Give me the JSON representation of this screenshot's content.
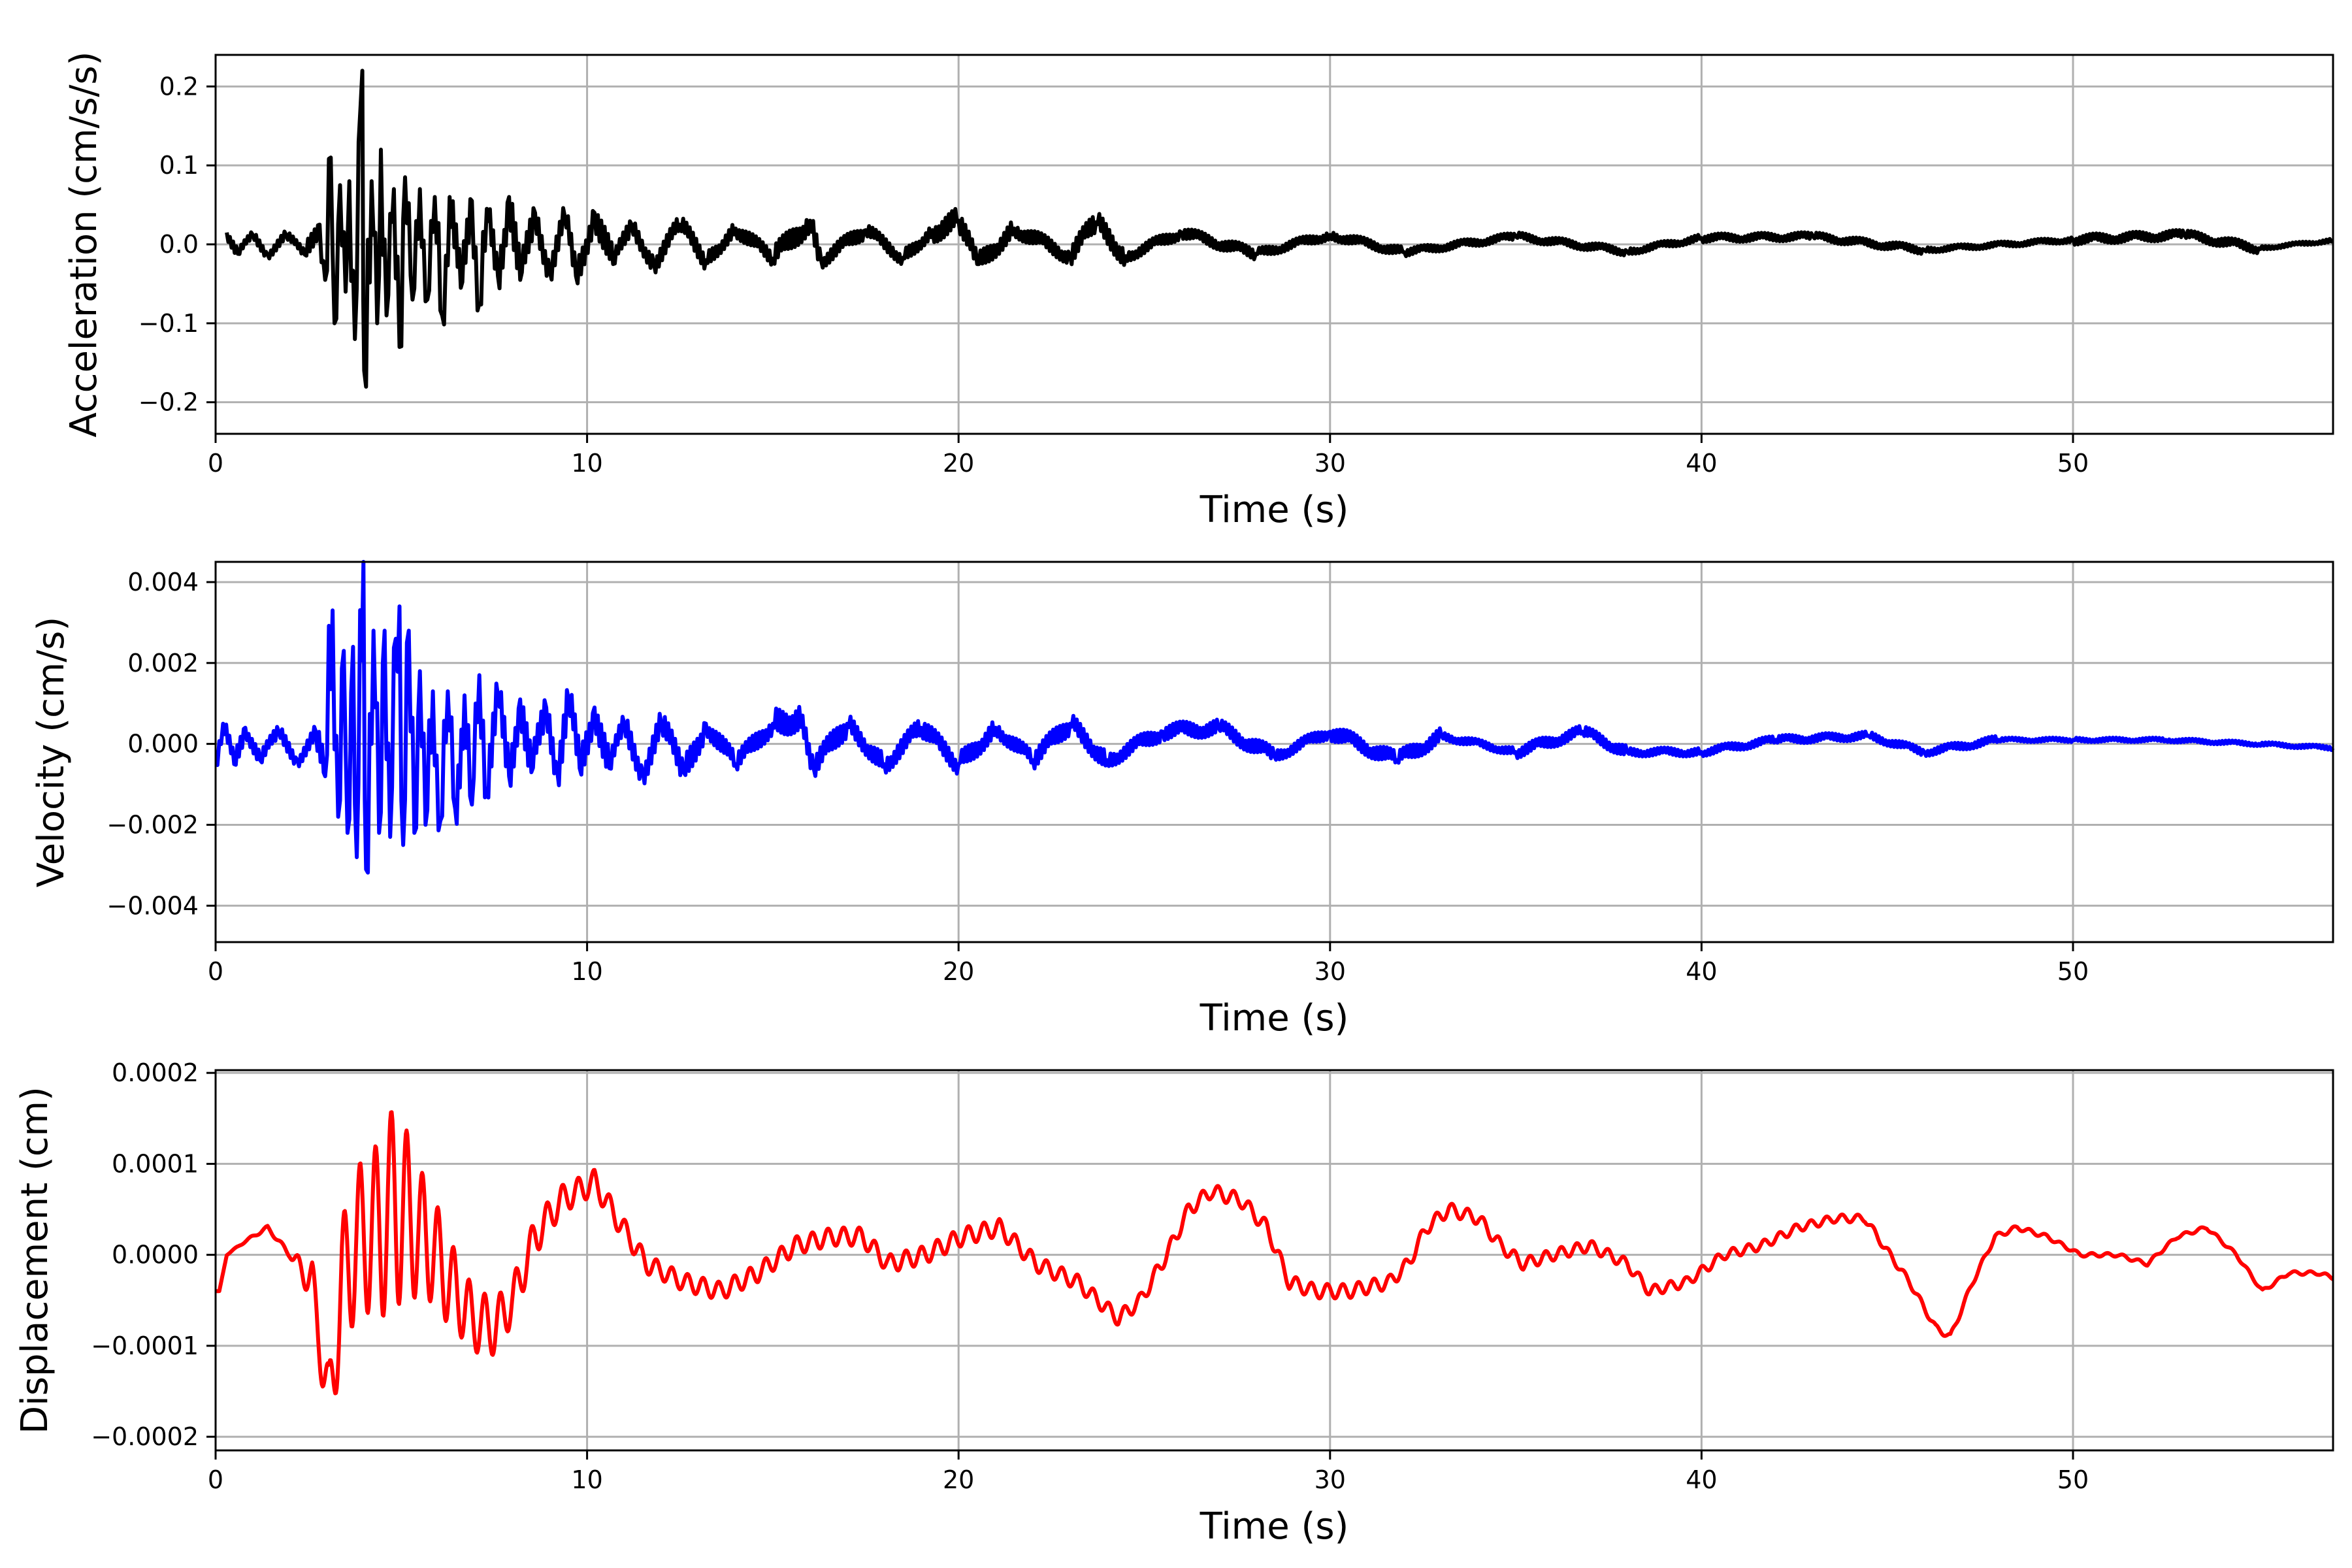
{
  "chart_data": [
    {
      "type": "line",
      "xlabel": "Time (s)",
      "ylabel": "Acceleration (cm/s/s)",
      "xlim": [
        0,
        57
      ],
      "ylim": [
        -0.24,
        0.24
      ],
      "xticks": [
        0,
        10,
        20,
        30,
        40,
        50
      ],
      "xtick_labels": [
        "0",
        "10",
        "20",
        "30",
        "40",
        "50"
      ],
      "yticks": [
        -0.2,
        -0.1,
        0.0,
        0.1,
        0.2
      ],
      "ytick_labels": [
        "−0.2",
        "−0.1",
        "0.0",
        "0.1",
        "0.2"
      ],
      "grid": true,
      "series": [
        {
          "color": "#000000",
          "peaks": [
            [
              0.3,
              0.015
            ],
            [
              0.6,
              -0.012
            ],
            [
              1.0,
              0.012
            ],
            [
              1.4,
              -0.013
            ],
            [
              1.9,
              0.012
            ],
            [
              2.4,
              -0.013
            ],
            [
              2.8,
              0.025
            ],
            [
              2.95,
              -0.045
            ],
            [
              3.1,
              0.11
            ],
            [
              3.2,
              -0.1
            ],
            [
              3.35,
              0.075
            ],
            [
              3.5,
              -0.06
            ],
            [
              3.6,
              0.08
            ],
            [
              3.75,
              -0.12
            ],
            [
              3.85,
              0.13
            ],
            [
              3.95,
              0.22
            ],
            [
              4.0,
              -0.16
            ],
            [
              4.2,
              0.08
            ],
            [
              4.35,
              -0.1
            ],
            [
              4.45,
              0.12
            ],
            [
              4.6,
              -0.09
            ],
            [
              4.8,
              0.07
            ],
            [
              4.95,
              -0.13
            ],
            [
              5.1,
              0.085
            ],
            [
              5.3,
              -0.07
            ],
            [
              5.5,
              0.07
            ],
            [
              5.7,
              -0.07
            ],
            [
              5.9,
              0.06
            ],
            [
              6.1,
              -0.09
            ],
            [
              6.3,
              0.06
            ],
            [
              6.6,
              -0.055
            ],
            [
              6.9,
              0.055
            ],
            [
              7.1,
              -0.075
            ],
            [
              7.3,
              0.045
            ],
            [
              7.6,
              -0.04
            ],
            [
              7.9,
              0.06
            ],
            [
              8.2,
              -0.045
            ],
            [
              8.6,
              0.04
            ],
            [
              9.0,
              -0.035
            ],
            [
              9.4,
              0.035
            ],
            [
              9.7,
              -0.04
            ],
            [
              10.2,
              0.04
            ],
            [
              10.7,
              -0.025
            ],
            [
              11.2,
              0.025
            ],
            [
              11.8,
              -0.025
            ],
            [
              12.5,
              0.025
            ],
            [
              13.2,
              -0.02
            ],
            [
              14.0,
              0.02
            ],
            [
              15.0,
              -0.018
            ],
            [
              16.0,
              0.03
            ],
            [
              16.3,
              -0.02
            ],
            [
              17.5,
              0.018
            ],
            [
              18.5,
              -0.017
            ],
            [
              19.3,
              0.018
            ],
            [
              20.0,
              0.03
            ],
            [
              20.5,
              -0.025
            ],
            [
              21.5,
              0.02
            ],
            [
              23.0,
              -0.015
            ],
            [
              23.7,
              0.028
            ],
            [
              24.5,
              -0.015
            ],
            [
              26.0,
              0.015
            ],
            [
              28.0,
              -0.012
            ],
            [
              30.0,
              0.012
            ],
            [
              32.0,
              -0.01
            ],
            [
              35.0,
              0.01
            ],
            [
              38.0,
              -0.009
            ],
            [
              40.0,
              0.008
            ],
            [
              43.0,
              0.01
            ],
            [
              46.0,
              -0.007
            ],
            [
              50.0,
              0.006
            ],
            [
              53.0,
              0.012
            ],
            [
              55.0,
              -0.005
            ],
            [
              57.0,
              0.005
            ]
          ]
        }
      ]
    },
    {
      "type": "line",
      "xlabel": "Time (s)",
      "ylabel": "Velocity (cm/s)",
      "xlim": [
        0,
        57
      ],
      "ylim": [
        -0.0049,
        0.0045
      ],
      "xticks": [
        0,
        10,
        20,
        30,
        40,
        50
      ],
      "xtick_labels": [
        "0",
        "10",
        "20",
        "30",
        "40",
        "50"
      ],
      "yticks": [
        -0.004,
        -0.002,
        0.0,
        0.002,
        0.004
      ],
      "ytick_labels": [
        "−0.004",
        "−0.002",
        "0.000",
        "0.002",
        "0.004"
      ],
      "grid": true,
      "series": [
        {
          "color": "#0000ff",
          "peaks": [
            [
              0.0,
              -0.0005
            ],
            [
              0.2,
              0.0005
            ],
            [
              0.5,
              -0.0005
            ],
            [
              0.8,
              0.0004
            ],
            [
              1.2,
              -0.0004
            ],
            [
              1.7,
              0.0003
            ],
            [
              2.2,
              -0.0004
            ],
            [
              2.7,
              0.0003
            ],
            [
              2.95,
              -0.0008
            ],
            [
              3.15,
              0.0033
            ],
            [
              3.3,
              -0.0018
            ],
            [
              3.45,
              0.0023
            ],
            [
              3.55,
              -0.0022
            ],
            [
              3.7,
              0.0024
            ],
            [
              3.8,
              -0.0028
            ],
            [
              3.98,
              0.0045
            ],
            [
              4.05,
              -0.0031
            ],
            [
              4.25,
              0.0028
            ],
            [
              4.4,
              -0.0022
            ],
            [
              4.55,
              0.0028
            ],
            [
              4.7,
              -0.0023
            ],
            [
              4.85,
              0.0026
            ],
            [
              4.95,
              0.0034
            ],
            [
              5.05,
              -0.0025
            ],
            [
              5.2,
              0.0028
            ],
            [
              5.35,
              -0.0022
            ],
            [
              5.5,
              0.0018
            ],
            [
              5.65,
              -0.002
            ],
            [
              5.85,
              0.0013
            ],
            [
              6.05,
              -0.0019
            ],
            [
              6.25,
              0.0013
            ],
            [
              6.45,
              -0.0016
            ],
            [
              6.7,
              0.0012
            ],
            [
              6.9,
              -0.0015
            ],
            [
              7.1,
              0.0017
            ],
            [
              7.3,
              -0.0011
            ],
            [
              7.6,
              0.0012
            ],
            [
              7.9,
              -0.0008
            ],
            [
              8.2,
              0.0011
            ],
            [
              8.5,
              -0.0007
            ],
            [
              8.9,
              0.0009
            ],
            [
              9.2,
              -0.0007
            ],
            [
              9.5,
              0.0011
            ],
            [
              9.8,
              -0.0006
            ],
            [
              10.2,
              0.0009
            ],
            [
              10.6,
              -0.0006
            ],
            [
              11.0,
              0.0005
            ],
            [
              11.5,
              -0.0007
            ],
            [
              12.0,
              0.0005
            ],
            [
              12.6,
              -0.0007
            ],
            [
              13.2,
              0.0005
            ],
            [
              14.0,
              -0.0005
            ],
            [
              15.0,
              0.0005
            ],
            [
              15.8,
              0.0007
            ],
            [
              16.1,
              -0.0006
            ],
            [
              17.0,
              0.0005
            ],
            [
              18.0,
              -0.0005
            ],
            [
              19.0,
              0.0004
            ],
            [
              20.0,
              -0.0005
            ],
            [
              21.0,
              0.0004
            ],
            [
              22.0,
              -0.0004
            ],
            [
              23.0,
              0.0005
            ],
            [
              24.0,
              -0.0004
            ],
            [
              25.5,
              0.0003
            ],
            [
              27.0,
              0.0004
            ],
            [
              28.5,
              -0.0003
            ],
            [
              30.0,
              0.0003
            ],
            [
              31.8,
              -0.0004
            ],
            [
              33.0,
              0.0002
            ],
            [
              35.0,
              -0.0002
            ],
            [
              36.8,
              0.0003
            ],
            [
              38.0,
              -0.0002
            ],
            [
              40.0,
              -0.0002
            ],
            [
              42.0,
              0.0001
            ],
            [
              44.5,
              0.0002
            ],
            [
              46.0,
              -0.0002
            ],
            [
              48.0,
              0.0001
            ],
            [
              50.0,
              0.0001
            ],
            [
              52.5,
              0.0001
            ],
            [
              55.0,
              0.0
            ],
            [
              57.0,
              -0.0001
            ]
          ]
        }
      ]
    },
    {
      "type": "line",
      "xlabel": "Time (s)",
      "ylabel": "Displacement (cm)",
      "xlim": [
        0,
        57
      ],
      "ylim": [
        -0.000215,
        0.000203
      ],
      "xticks": [
        0,
        10,
        20,
        30,
        40,
        50
      ],
      "xtick_labels": [
        "0",
        "10",
        "20",
        "30",
        "40",
        "50"
      ],
      "yticks": [
        -0.0002,
        -0.0001,
        0.0,
        0.0001,
        0.0002
      ],
      "ytick_labels": [
        "−0.0002",
        "−0.0001",
        "0.0000",
        "0.0001",
        "0.0002"
      ],
      "grid": true,
      "series": [
        {
          "color": "#ff0000",
          "trend": [
            [
              0.0,
              -4e-05
            ],
            [
              0.1,
              -4e-05
            ],
            [
              0.3,
              0.0
            ],
            [
              0.8,
              1.5e-05
            ],
            [
              1.4,
              3e-05
            ],
            [
              2.0,
              0.0
            ],
            [
              2.6,
              -3e-05
            ],
            [
              3.05,
              -0.00017
            ],
            [
              3.4,
              -3e-05
            ],
            [
              3.9,
              2e-05
            ],
            [
              4.5,
              3e-05
            ],
            [
              4.8,
              6e-05
            ],
            [
              5.2,
              4e-05
            ],
            [
              5.8,
              1e-05
            ],
            [
              6.3,
              -3e-05
            ],
            [
              6.9,
              -7e-05
            ],
            [
              7.5,
              -8e-05
            ],
            [
              8.0,
              -5e-05
            ],
            [
              8.6,
              2e-05
            ],
            [
              9.3,
              6e-05
            ],
            [
              10.2,
              8e-05
            ],
            [
              10.8,
              4e-05
            ],
            [
              11.6,
              -1e-05
            ],
            [
              12.6,
              -3e-05
            ],
            [
              13.6,
              -4e-05
            ],
            [
              14.6,
              -2e-05
            ],
            [
              15.6,
              1e-05
            ],
            [
              16.6,
              2e-05
            ],
            [
              17.4,
              2e-05
            ],
            [
              18.1,
              -1e-05
            ],
            [
              19.1,
              0.0
            ],
            [
              20.1,
              2e-05
            ],
            [
              21.1,
              3e-05
            ],
            [
              22.1,
              -1e-05
            ],
            [
              23.2,
              -3e-05
            ],
            [
              24.3,
              -7e-05
            ],
            [
              24.9,
              -5e-05
            ],
            [
              25.6,
              0.0
            ],
            [
              26.2,
              5e-05
            ],
            [
              26.8,
              7e-05
            ],
            [
              27.6,
              6e-05
            ],
            [
              28.3,
              3e-05
            ],
            [
              28.9,
              -3e-05
            ],
            [
              29.6,
              -4e-05
            ],
            [
              30.5,
              -4e-05
            ],
            [
              31.6,
              -3e-05
            ],
            [
              32.1,
              -1e-05
            ],
            [
              32.6,
              3e-05
            ],
            [
              33.2,
              5e-05
            ],
            [
              34.0,
              4e-05
            ],
            [
              34.6,
              1e-05
            ],
            [
              35.2,
              -1e-05
            ],
            [
              36.0,
              0.0
            ],
            [
              37.0,
              1e-05
            ],
            [
              38.0,
              -1e-05
            ],
            [
              38.6,
              -4e-05
            ],
            [
              39.6,
              -3e-05
            ],
            [
              40.6,
              0.0
            ],
            [
              41.6,
              1e-05
            ],
            [
              42.6,
              3e-05
            ],
            [
              43.6,
              4e-05
            ],
            [
              44.4,
              4e-05
            ],
            [
              44.9,
              1e-05
            ],
            [
              45.6,
              -3e-05
            ],
            [
              46.3,
              -8e-05
            ],
            [
              46.7,
              -9e-05
            ],
            [
              47.3,
              -3e-05
            ],
            [
              47.9,
              2e-05
            ],
            [
              48.5,
              3e-05
            ],
            [
              49.3,
              2e-05
            ],
            [
              50.2,
              0.0
            ],
            [
              51.2,
              0.0
            ],
            [
              52.0,
              -1e-05
            ],
            [
              52.8,
              2e-05
            ],
            [
              53.6,
              3e-05
            ],
            [
              54.4,
              0.0
            ],
            [
              55.1,
              -4e-05
            ],
            [
              55.8,
              -2e-05
            ],
            [
              56.6,
              -2e-05
            ],
            [
              57.0,
              -2.5e-05
            ]
          ],
          "oscillation_envelope": [
            [
              0.0,
              0.0
            ],
            [
              2.0,
              3e-06
            ],
            [
              2.8,
              3e-05
            ],
            [
              3.4,
              7e-05
            ],
            [
              4.2,
              9e-05
            ],
            [
              4.9,
              0.00011
            ],
            [
              5.5,
              7e-05
            ],
            [
              6.6,
              4e-05
            ],
            [
              8.0,
              2.5e-05
            ],
            [
              9.5,
              1.5e-05
            ],
            [
              12.0,
              1e-05
            ],
            [
              16.0,
              1e-05
            ],
            [
              20.0,
              1e-05
            ],
            [
              24.0,
              8e-06
            ],
            [
              30.0,
              8e-06
            ],
            [
              38.0,
              6e-06
            ],
            [
              45.0,
              4e-06
            ],
            [
              50.0,
              2e-06
            ],
            [
              57.0,
              2e-06
            ]
          ]
        }
      ]
    }
  ]
}
